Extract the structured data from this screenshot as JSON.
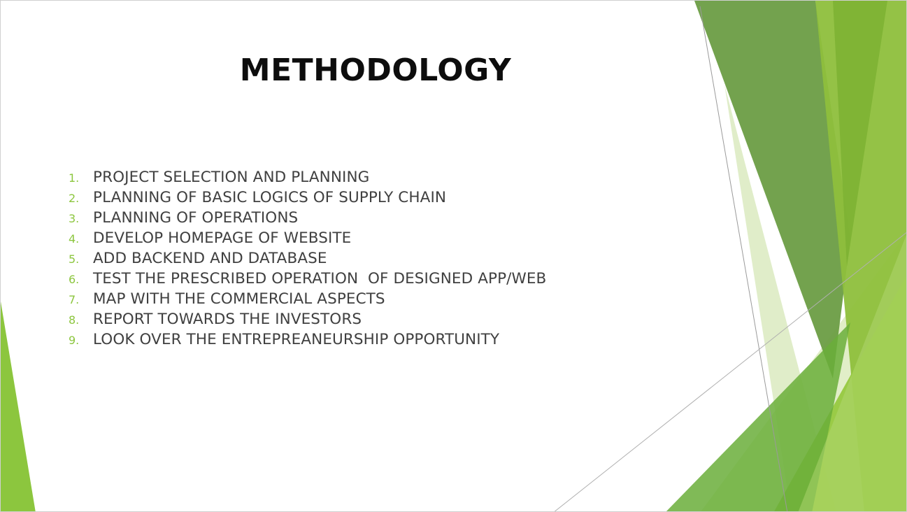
{
  "slide": {
    "title": "METHODOLOGY",
    "items": [
      {
        "number": "1.",
        "text": "PROJECT SELECTION AND PLANNING"
      },
      {
        "number": "2.",
        "text": "PLANNING OF BASIC LOGICS OF SUPPLY CHAIN"
      },
      {
        "number": "3.",
        "text": "PLANNING OF OPERATIONS"
      },
      {
        "number": "4.",
        "text": "DEVELOP HOMEPAGE OF WEBSITE"
      },
      {
        "number": "5.",
        "text": "ADD BACKEND AND DATABASE"
      },
      {
        "number": "6.",
        "text": "TEST THE PRESCRIBED OPERATION  OF DESIGNED APP/WEB"
      },
      {
        "number": "7.",
        "text": "MAP WITH THE COMMERCIAL ASPECTS"
      },
      {
        "number": "8.",
        "text": "REPORT TOWARDS THE INVESTORS"
      },
      {
        "number": "9.",
        "text": "LOOK OVER THE ENTREPREANEURSHIP OPPORTUNITY"
      }
    ]
  },
  "theme": {
    "title_color": "#0d0d0d",
    "text_color": "#404040",
    "accent_color": "#8cc63e"
  }
}
